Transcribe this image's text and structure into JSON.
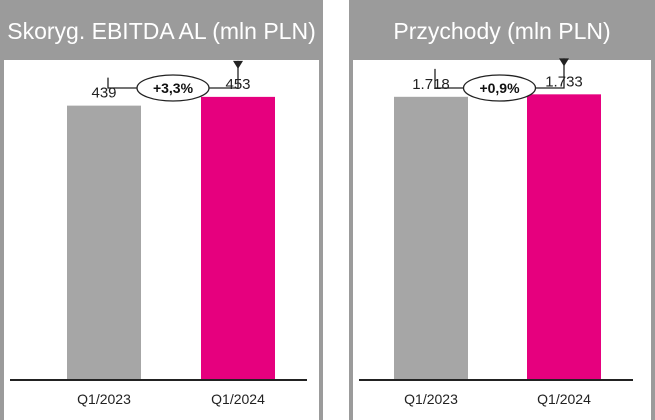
{
  "colors": {
    "panel_frame": "#9b9b9b",
    "bar_2023": "#a6a6a6",
    "bar_2024": "#e6007e",
    "axis": "#222222"
  },
  "chart_data": [
    {
      "type": "bar",
      "title": "Skoryg. EBITDA AL (mln PLN)",
      "categories": [
        "Q1/2023",
        "Q1/2024"
      ],
      "values": [
        439,
        453
      ],
      "value_labels": [
        "439",
        "453"
      ],
      "change_label": "+3,3%",
      "ylim": [
        0,
        480
      ],
      "xlabel": "",
      "ylabel": "",
      "grid": false,
      "legend": "none"
    },
    {
      "type": "bar",
      "title": "Przychody (mln PLN)",
      "categories": [
        "Q1/2023",
        "Q1/2024"
      ],
      "values": [
        1718,
        1733
      ],
      "value_labels": [
        "1.718",
        "1.733"
      ],
      "change_label": "+0,9%",
      "ylim": [
        0,
        1820
      ],
      "xlabel": "",
      "ylabel": "",
      "grid": false,
      "legend": "none"
    }
  ]
}
